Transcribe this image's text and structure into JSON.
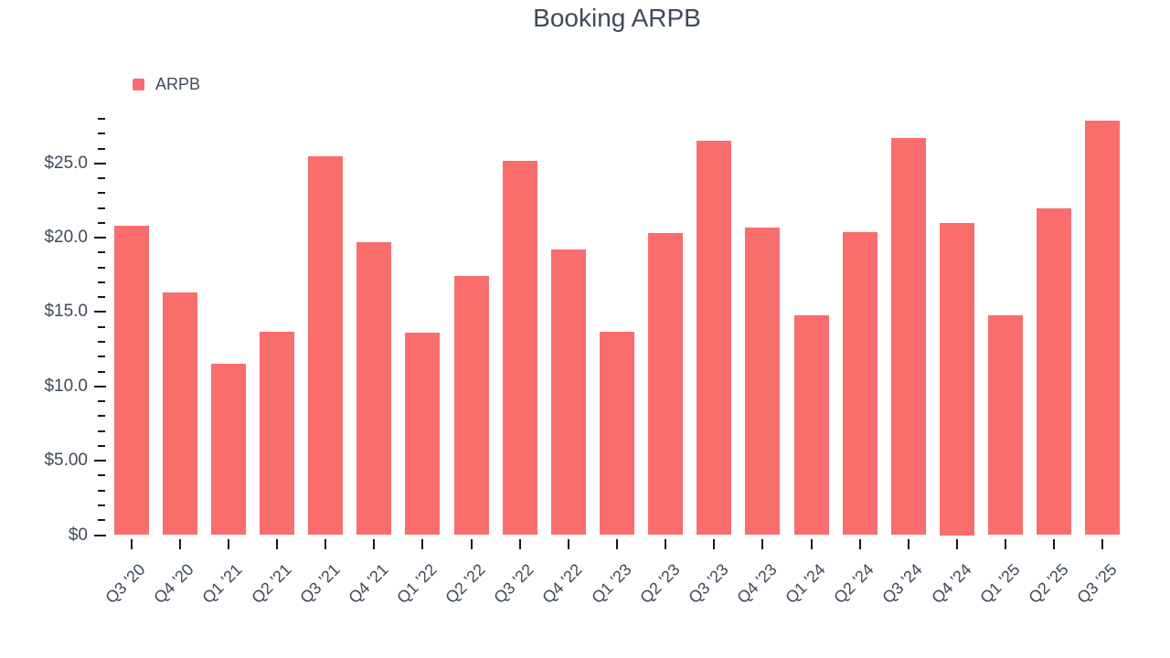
{
  "chart_data": {
    "type": "bar",
    "title": "Booking ARPB",
    "series_name": "ARPB",
    "legend_position": "top-left",
    "grid": false,
    "categories": [
      "Q3 '20",
      "Q4 '20",
      "Q1 '21",
      "Q2 '21",
      "Q3 '21",
      "Q4 '21",
      "Q1 '22",
      "Q2 '22",
      "Q3 '22",
      "Q4 '22",
      "Q1 '23",
      "Q2 '23",
      "Q3 '23",
      "Q4 '23",
      "Q1 '24",
      "Q2 '24",
      "Q3 '24",
      "Q4 '24",
      "Q1 '25",
      "Q2 '25",
      "Q3 '25"
    ],
    "values": [
      20.8,
      16.3,
      11.5,
      13.7,
      25.5,
      19.7,
      13.6,
      17.4,
      25.2,
      19.2,
      13.7,
      20.3,
      26.5,
      20.7,
      14.8,
      20.4,
      26.7,
      21.0,
      14.8,
      22.0,
      27.9
    ],
    "xlabel": "",
    "ylabel": "",
    "ylim": [
      0,
      28
    ],
    "y_major_interval": 5,
    "y_minor_interval": 1,
    "y_ticks": [
      {
        "value": 0,
        "label": "$0"
      },
      {
        "value": 5,
        "label": "$5.00"
      },
      {
        "value": 10,
        "label": "$10.0"
      },
      {
        "value": 15,
        "label": "$15.0"
      },
      {
        "value": 20,
        "label": "$20.0"
      },
      {
        "value": 25,
        "label": "$25.0"
      }
    ],
    "colors": {
      "bar": "#fa6d6d",
      "text": "#3f4a59",
      "tick": "#14181f",
      "background": "#ffffff"
    }
  }
}
